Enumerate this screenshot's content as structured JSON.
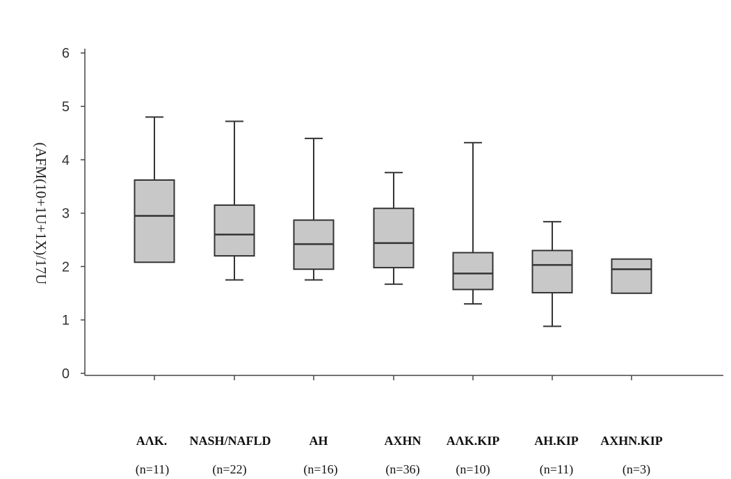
{
  "chart_data": {
    "type": "box",
    "ylabel": "(AFM(10+1U+1X)/17U",
    "ylim": [
      0,
      6
    ],
    "yticks": [
      "0",
      "1",
      "2",
      "3",
      "4",
      "5",
      "6"
    ],
    "grid": false,
    "categories": [
      "AΛK.",
      "NASH/NAFLD",
      "AH",
      "AXHN",
      "AΛK.KIP",
      "AH.KIP",
      "AXHN.KIP"
    ],
    "counts": [
      "(n=11)",
      "(n=22)",
      "(n=16)",
      "(n=36)",
      "(n=10)",
      "(n=11)",
      "(n=3)"
    ],
    "boxes": [
      {
        "min": 2.08,
        "q1": 2.08,
        "median": 2.95,
        "q3": 3.62,
        "max": 4.8
      },
      {
        "min": 1.75,
        "q1": 2.2,
        "median": 2.6,
        "q3": 3.15,
        "max": 4.72
      },
      {
        "min": 1.75,
        "q1": 1.95,
        "median": 2.42,
        "q3": 2.87,
        "max": 4.4
      },
      {
        "min": 1.67,
        "q1": 1.98,
        "median": 2.44,
        "q3": 3.09,
        "max": 3.76
      },
      {
        "min": 1.3,
        "q1": 1.57,
        "median": 1.87,
        "q3": 2.26,
        "max": 4.32
      },
      {
        "min": 0.88,
        "q1": 1.51,
        "median": 2.03,
        "q3": 2.3,
        "max": 2.84
      },
      {
        "min": 1.5,
        "q1": 1.5,
        "median": 1.95,
        "q3": 2.14,
        "max": 2.14
      }
    ],
    "colors": {
      "box_fill": "#c8c8c8",
      "stroke": "#333333"
    }
  }
}
